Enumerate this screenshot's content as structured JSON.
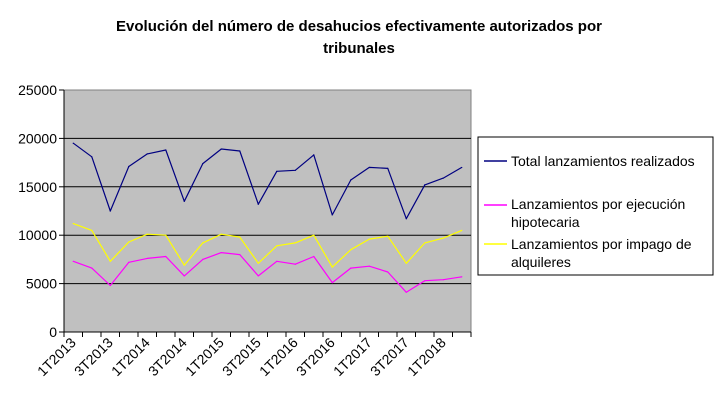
{
  "chart_data": {
    "type": "line",
    "title_lines": [
      "Evolución del número de desahucios efectivamente autorizados por",
      "tribunales"
    ],
    "xlabel": "",
    "ylabel": "",
    "ylim": [
      0,
      25000
    ],
    "y_ticks": [
      "0",
      "5000",
      "10000",
      "15000",
      "20000",
      "25000"
    ],
    "categories": [
      "1T2013",
      "2T2013",
      "3T2013",
      "4T2013",
      "1T2014",
      "2T2014",
      "3T2014",
      "4T2014",
      "1T2015",
      "2T2015",
      "3T2015",
      "4T2015",
      "1T2016",
      "2T2016",
      "3T2016",
      "4T2016",
      "1T2017",
      "2T2017",
      "3T2017",
      "4T2017",
      "1T2018",
      "2T2018"
    ],
    "x_tick_labels": [
      "1T2013",
      "3T2013",
      "1T2014",
      "3T2014",
      "1T2015",
      "3T2015",
      "1T2016",
      "3T2016",
      "1T2017",
      "3T2017",
      "1T2018"
    ],
    "grid": true,
    "plot_background": "#c0c0c0",
    "legend_placement": "right",
    "series": [
      {
        "name_lines": [
          "Total lanzamientos realizados"
        ],
        "color": "#000080",
        "values": [
          19500,
          18100,
          12500,
          17100,
          18400,
          18800,
          13500,
          17400,
          18900,
          18700,
          13200,
          16600,
          16700,
          18300,
          12100,
          15700,
          17000,
          16900,
          11700,
          15200,
          15900,
          17000
        ]
      },
      {
        "name_lines": [
          "Lanzamientos por ejecución",
          "hipotecaria"
        ],
        "color": "#ff00ff",
        "values": [
          7300,
          6600,
          4800,
          7200,
          7600,
          7800,
          5800,
          7500,
          8200,
          8000,
          5800,
          7300,
          7000,
          7800,
          5100,
          6600,
          6800,
          6200,
          4100,
          5300,
          5400,
          5700
        ]
      },
      {
        "name_lines": [
          "Lanzamientos por impago de",
          "alquileres"
        ],
        "color": "#ffff00",
        "values": [
          11200,
          10500,
          7300,
          9300,
          10100,
          10000,
          6900,
          9200,
          10100,
          9800,
          7100,
          8900,
          9200,
          10000,
          6700,
          8500,
          9600,
          9900,
          7100,
          9200,
          9700,
          10500
        ]
      }
    ]
  }
}
